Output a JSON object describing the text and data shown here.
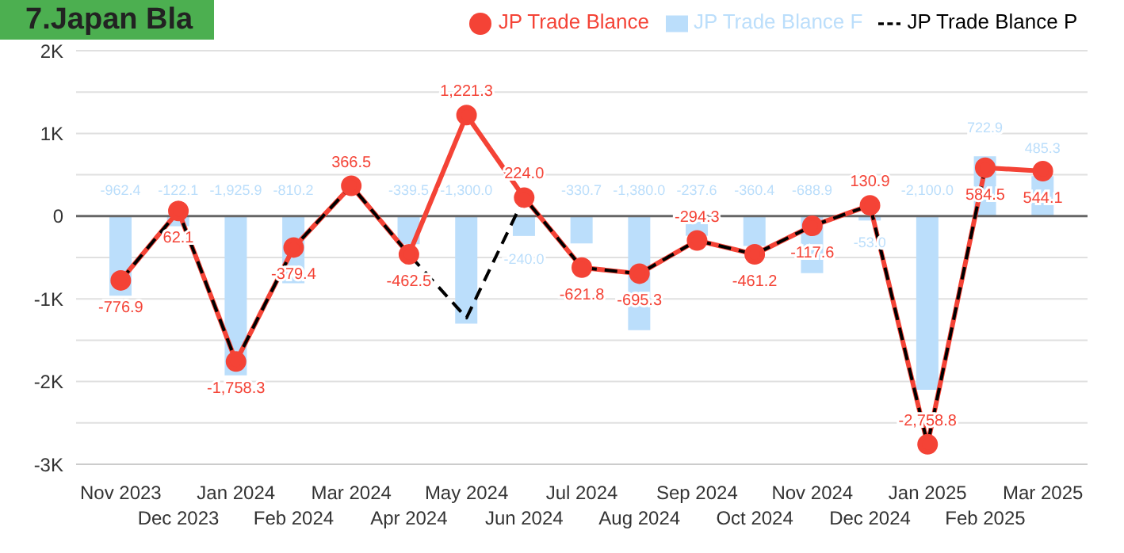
{
  "chart_data": {
    "type": "line",
    "title": "7.Japan Bla",
    "categories": [
      "Nov 2023",
      "Dec 2023",
      "Jan 2024",
      "Feb 2024",
      "Mar 2024",
      "Apr 2024",
      "May 2024",
      "Jun 2024",
      "Jul 2024",
      "Aug 2024",
      "Sep 2024",
      "Oct 2024",
      "Nov 2024",
      "Dec 2024",
      "Jan 2025",
      "Feb 2025",
      "Mar 2025"
    ],
    "series": [
      {
        "name": "JP Trade Blance F",
        "type": "bar",
        "color": "#bbdefb",
        "values": [
          -962.4,
          -122.1,
          -1925.9,
          -810.2,
          null,
          -339.5,
          -1300.0,
          -240.0,
          -330.7,
          -1380.0,
          -237.6,
          -360.4,
          -688.9,
          -53.0,
          -2100.0,
          722.9,
          485.3
        ],
        "value_labels": [
          "-962.4",
          "-122.1",
          "-1,925.9",
          "-810.2",
          null,
          "-339.5",
          "-1,300.0",
          "-240.0",
          "-330.7",
          "-1,380.0",
          "-237.6",
          "-360.4",
          "-688.9",
          "-53.0",
          "-2,100.0",
          "722.9",
          "485.3"
        ]
      },
      {
        "name": "JP Trade Blance",
        "color": "#f44336",
        "marker": "circle",
        "line_style": "solid",
        "values": [
          -776.9,
          62.1,
          -1758.3,
          -379.4,
          366.5,
          -462.5,
          1221.3,
          224.0,
          -621.8,
          -695.3,
          -294.3,
          -461.2,
          -117.6,
          130.9,
          -2758.8,
          584.5,
          544.1
        ],
        "value_labels": [
          "-776.9",
          "62.1",
          "-1,758.3",
          "-379.4",
          "366.5",
          "-462.5",
          "1,221.3",
          "224.0",
          "-621.8",
          "-695.3",
          "-294.3",
          "-461.2",
          "-117.6",
          "130.9",
          "-2,758.8",
          "584.5",
          "544.1"
        ]
      },
      {
        "name": "JP Trade Blance P",
        "color": "#000000",
        "marker": "none",
        "line_style": "dashed",
        "values": [
          -776.9,
          62.1,
          -1758.3,
          -379.4,
          366.5,
          -462.5,
          -1230,
          224.0,
          -621.8,
          -695.3,
          -294.3,
          -461.2,
          -117.6,
          130.9,
          -2758.8,
          584.5,
          null
        ]
      }
    ],
    "ylim": [
      -3000,
      2000
    ],
    "yticks": [
      {
        "value": -3000,
        "label": "-3K"
      },
      {
        "value": -2500,
        "label": null
      },
      {
        "value": -2000,
        "label": "-2K"
      },
      {
        "value": -1500,
        "label": null
      },
      {
        "value": -1000,
        "label": "-1K"
      },
      {
        "value": -500,
        "label": null
      },
      0,
      {
        "value": 500,
        "label": null
      },
      {
        "value": 1000,
        "label": "1K"
      },
      {
        "value": 1500,
        "label": null
      },
      {
        "value": 2000,
        "label": "2K"
      }
    ],
    "grid": "y",
    "legend": "top"
  }
}
